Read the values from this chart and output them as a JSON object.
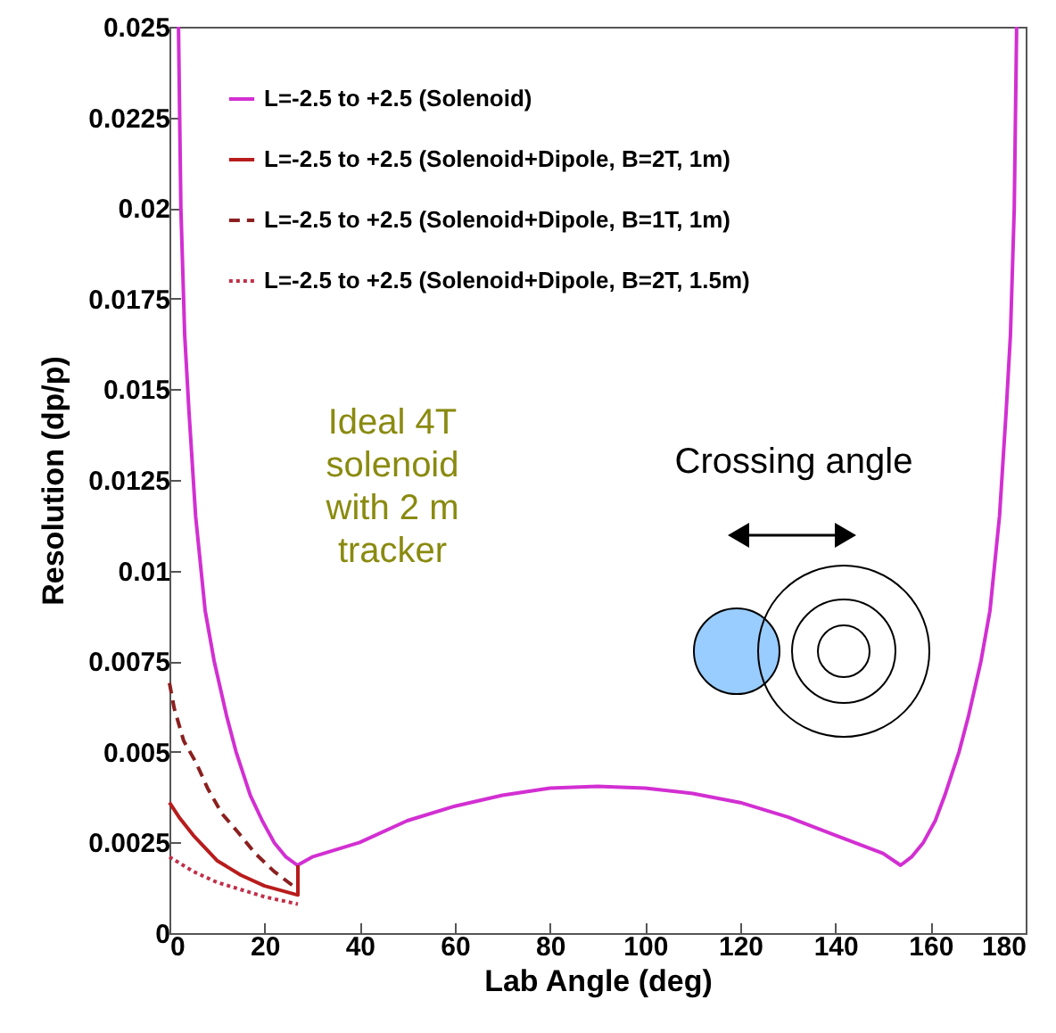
{
  "chart_data": {
    "type": "line",
    "xlabel": "Lab Angle (deg)",
    "ylabel": "Resolution (dp/p)",
    "xlim": [
      0,
      180
    ],
    "xticks": [
      0,
      20,
      40,
      60,
      80,
      100,
      120,
      140,
      160,
      180
    ],
    "ylim": [
      0,
      0.025
    ],
    "yticks": [
      0,
      0.0025,
      0.005,
      0.0075,
      0.01,
      0.0125,
      0.015,
      0.0175,
      0.02,
      0.0225,
      0.025
    ],
    "grid": false,
    "legend": "top left",
    "marker": "none",
    "annotations": [
      "Ideal 4T\nsolenoid\nwith 2 m\n tracker",
      "Crossing angle"
    ],
    "series": [
      {
        "name": "L=-2.5 to +2.5 (Solenoid)",
        "color": "#d22fd2",
        "line_style": "solid",
        "x": [
          1.9,
          2.4,
          3.2,
          4.1,
          5.5,
          7.5,
          9.4,
          12,
          14,
          17,
          19.5,
          22,
          24.5,
          26.9,
          30,
          40,
          50,
          60,
          70,
          80,
          90,
          100,
          110,
          120,
          130,
          140,
          150,
          153.7,
          156,
          158.5,
          161,
          163,
          166,
          168,
          170.6,
          172.5,
          174.5,
          175.9,
          176.8,
          177.6,
          178.1
        ],
        "values": [
          0.025,
          0.02,
          0.0165,
          0.0144,
          0.0115,
          0.0089,
          0.0075,
          0.006,
          0.005,
          0.0038,
          0.0031,
          0.0025,
          0.0021,
          0.00187,
          0.0021,
          0.0025,
          0.0031,
          0.0035,
          0.0038,
          0.004,
          0.00405,
          0.004,
          0.00385,
          0.0036,
          0.0032,
          0.0027,
          0.0022,
          0.00187,
          0.0021,
          0.0025,
          0.0031,
          0.0038,
          0.005,
          0.006,
          0.0075,
          0.0089,
          0.0115,
          0.0144,
          0.0165,
          0.02,
          0.025
        ]
      },
      {
        "name": "L=-2.5 to +2.5 (Solenoid+Dipole, B=2T, 1m)",
        "color": "#b81c1c",
        "line_style": "solid",
        "x": [
          0,
          2,
          5,
          10,
          15,
          20,
          27,
          27
        ],
        "values": [
          0.0036,
          0.0032,
          0.0027,
          0.002,
          0.0016,
          0.0013,
          0.00105,
          0.00187
        ]
      },
      {
        "name": "L=-2.5 to +2.5 (Solenoid+Dipole, B=1T, 1m)",
        "color": "#8b2020",
        "line_style": "dashed",
        "x": [
          0,
          1,
          3,
          5.6,
          8,
          11,
          14.3,
          18,
          22,
          27
        ],
        "values": [
          0.0069,
          0.0062,
          0.0053,
          0.0047,
          0.004,
          0.0033,
          0.0028,
          0.0022,
          0.0017,
          0.0012
        ]
      },
      {
        "name": "L=-2.5 to +2.5 (Solenoid+Dipole, B=2T, 1.5m)",
        "color": "#c0304a",
        "line_style": "dotted",
        "x": [
          0,
          5,
          10,
          15,
          20,
          27
        ],
        "values": [
          0.0021,
          0.0017,
          0.0014,
          0.0012,
          0.001,
          0.0008
        ]
      }
    ]
  }
}
